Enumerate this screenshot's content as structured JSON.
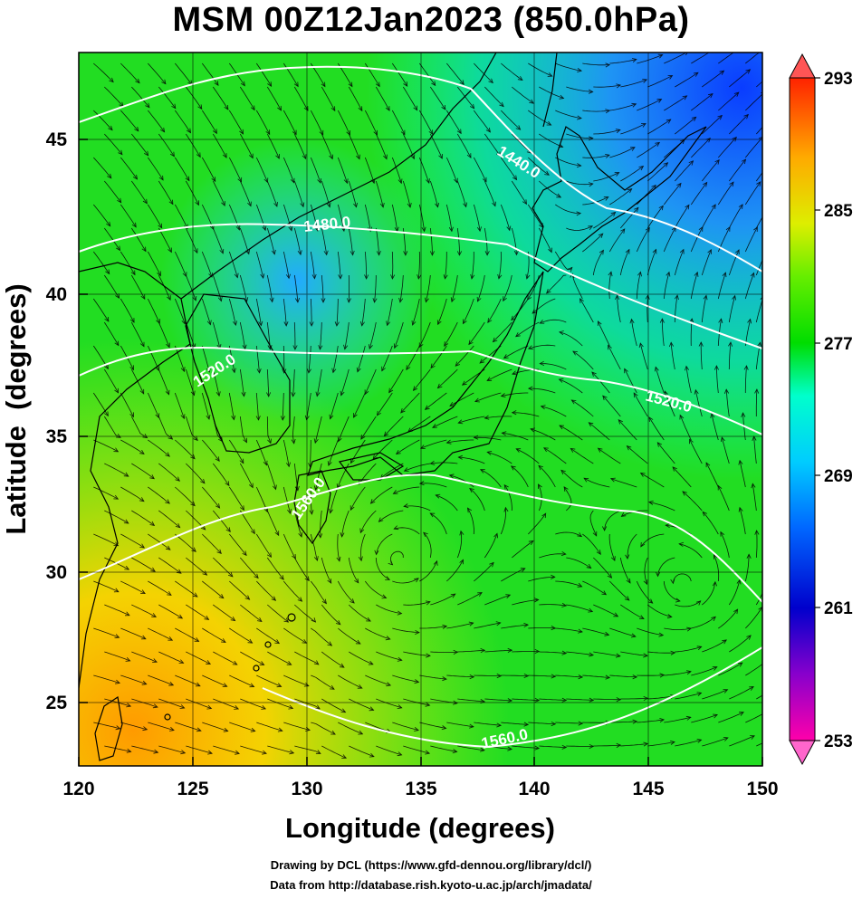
{
  "title": "MSM 00Z12Jan2023 (850.0hPa)",
  "chart_data": {
    "type": "heatmap",
    "title": "MSM 00Z12Jan2023 (850.0hPa)",
    "xlabel": "Longitude (degrees)",
    "ylabel": "Latitude  (degrees)",
    "xlim": [
      120,
      150
    ],
    "ylim": [
      22.4,
      47.6
    ],
    "x_ticks": [
      "120",
      "125",
      "130",
      "135",
      "140",
      "145",
      "150"
    ],
    "y_ticks": [
      "25",
      "30",
      "35",
      "40",
      "45"
    ],
    "grid": true,
    "colorbar": {
      "range": [
        253,
        293
      ],
      "ticks": [
        "293",
        "285",
        "277",
        "269",
        "261",
        "253"
      ],
      "colors": [
        "#ff00aa",
        "#8800cc",
        "#0000cc",
        "#0066ff",
        "#00ccff",
        "#00ffcc",
        "#00dd00",
        "#aaee00",
        "#ffdd00",
        "#ff9900",
        "#ff2200"
      ]
    },
    "contour_labels": [
      "1440.0",
      "1480.0",
      "1520.0",
      "1520.0",
      "1560.0",
      "1560.0"
    ],
    "overlays": [
      "streamlines",
      "coastlines",
      "geopotential height contours"
    ]
  },
  "credits": {
    "line1": "Drawing by DCL (https://www.gfd-dennou.org/library/dcl/)",
    "line2": "Data from http://database.rish.kyoto-u.ac.jp/arch/jmadata/"
  }
}
